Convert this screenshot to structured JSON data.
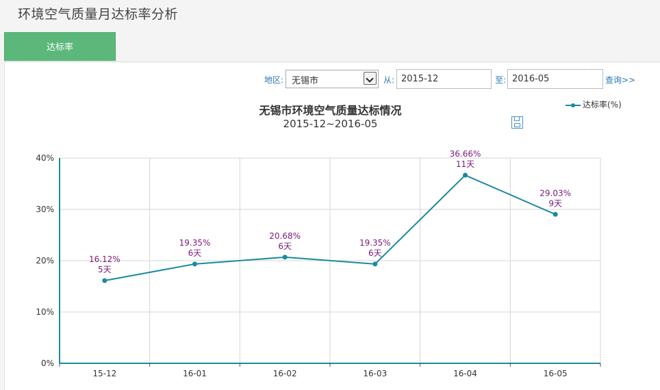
{
  "page": {
    "title": "环境空气质量月达标率分析"
  },
  "tabs": [
    {
      "label": "达标率"
    }
  ],
  "filters": {
    "region_label": "地区:",
    "region_value": "无锡市",
    "from_label": "从:",
    "from_value": "2015-12",
    "to_label": "至:",
    "to_value": "2016-05",
    "query_label": "查询>>"
  },
  "colors": {
    "series": "#1a8a9e",
    "labels": "#7a1a7a",
    "tab": "#5cb87a",
    "link": "#2a7ab5"
  },
  "chart_data": {
    "type": "line",
    "title": "无锡市环境空气质量达标情况",
    "subtitle": "2015-12~2016-05",
    "categories": [
      "15-12",
      "16-01",
      "16-02",
      "16-03",
      "16-04",
      "16-05"
    ],
    "series": [
      {
        "name": "达标率(%)",
        "values": [
          16.12,
          19.35,
          20.68,
          19.35,
          36.66,
          29.03
        ],
        "value_labels": [
          "16.12%",
          "19.35%",
          "20.68%",
          "19.35%",
          "36.66%",
          "29.03%"
        ],
        "day_labels": [
          "5天",
          "6天",
          "6天",
          "6天",
          "11天",
          "9天"
        ]
      }
    ],
    "y_ticks": [
      0,
      10,
      20,
      30,
      40
    ],
    "y_tick_labels": [
      "0%",
      "10%",
      "20%",
      "30%",
      "40%"
    ],
    "ylim": [
      0,
      40
    ],
    "grid": true,
    "legend": "top-right"
  }
}
